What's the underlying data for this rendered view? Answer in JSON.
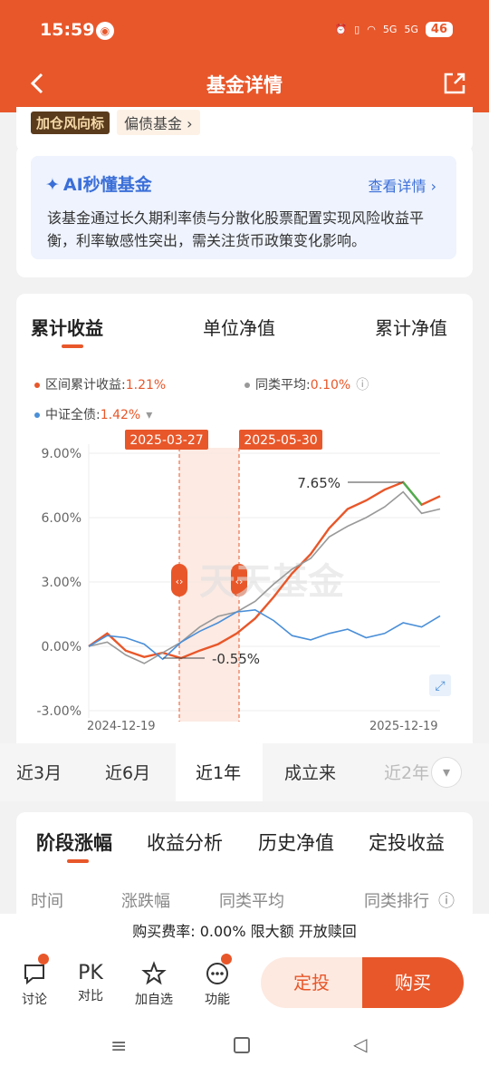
{
  "status": {
    "time": "15:59",
    "net1": "5G",
    "net2": "5G",
    "battery": "46"
  },
  "nav": {
    "title": "基金详情"
  },
  "tags": {
    "tag1": "加仓风向标",
    "tag2": "偏债基金 ›"
  },
  "ai": {
    "title": "AI秒懂基金",
    "more": "查看详情 ›",
    "text": "该基金通过长久期利率债与分散化股票配置实现风险收益平衡，利率敏感性突出，需关注货币政策变化影响。"
  },
  "chart_tabs": [
    "累计收益",
    "单位净值",
    "累计净值"
  ],
  "legend": {
    "fund_label": "区间累计收益:",
    "fund_value": "1.21%",
    "peer_label": "同类平均:",
    "peer_value": "0.10%",
    "index_label": "中证全债:",
    "index_value": "1.42%"
  },
  "colors": {
    "brand": "#e8572a",
    "fund": "#e8572a",
    "peer": "#999999",
    "index": "#4a8fd8",
    "up": "#4caf50"
  },
  "chart_data": {
    "type": "line",
    "x_range": [
      "2024-12-19",
      "2025-12-19"
    ],
    "xlabel_start": "2024-12-19",
    "xlabel_end": "2025-12-19",
    "y_ticks": [
      "9.00%",
      "6.00%",
      "3.00%",
      "0.00%",
      "-3.00%"
    ],
    "ylim": [
      -3,
      9
    ],
    "annotations": {
      "max": "7.65%",
      "min": "-0.55%"
    },
    "range_markers": [
      "2025-03-27",
      "2025-05-30"
    ],
    "watermark": "天天基金",
    "series": [
      {
        "key": "fund",
        "values": [
          0,
          0.6,
          -0.2,
          -0.5,
          -0.3,
          -0.55,
          -0.2,
          0.1,
          0.6,
          1.3,
          2.3,
          3.4,
          4.3,
          5.5,
          6.4,
          6.8,
          7.3,
          7.65,
          6.6,
          7.0
        ]
      },
      {
        "key": "peer",
        "values": [
          0,
          0.2,
          -0.4,
          -0.8,
          -0.3,
          0.2,
          0.9,
          1.4,
          1.6,
          2.1,
          2.9,
          3.6,
          4.1,
          5.1,
          5.6,
          6.0,
          6.5,
          7.2,
          6.2,
          6.4
        ]
      },
      {
        "key": "index",
        "values": [
          0,
          0.5,
          0.4,
          0.1,
          -0.6,
          0.2,
          0.7,
          1.1,
          1.6,
          1.7,
          1.2,
          0.5,
          0.3,
          0.6,
          0.8,
          0.4,
          0.6,
          1.1,
          0.9,
          1.42
        ]
      }
    ]
  },
  "periods": [
    "近3月",
    "近6月",
    "近1年",
    "成立来",
    "近2年"
  ],
  "subtabs": [
    "阶段涨幅",
    "收益分析",
    "历史净值",
    "定投收益"
  ],
  "table_headers": [
    "时间",
    "涨跌幅",
    "同类平均",
    "同类排行"
  ],
  "fee": "购买费率: 0.00% 限大额 开放赎回",
  "bottom": {
    "discuss": "讨论",
    "pk": "PK",
    "compare": "对比",
    "watch": "加自选",
    "func": "功能",
    "sip": "定投",
    "buy": "购买"
  }
}
